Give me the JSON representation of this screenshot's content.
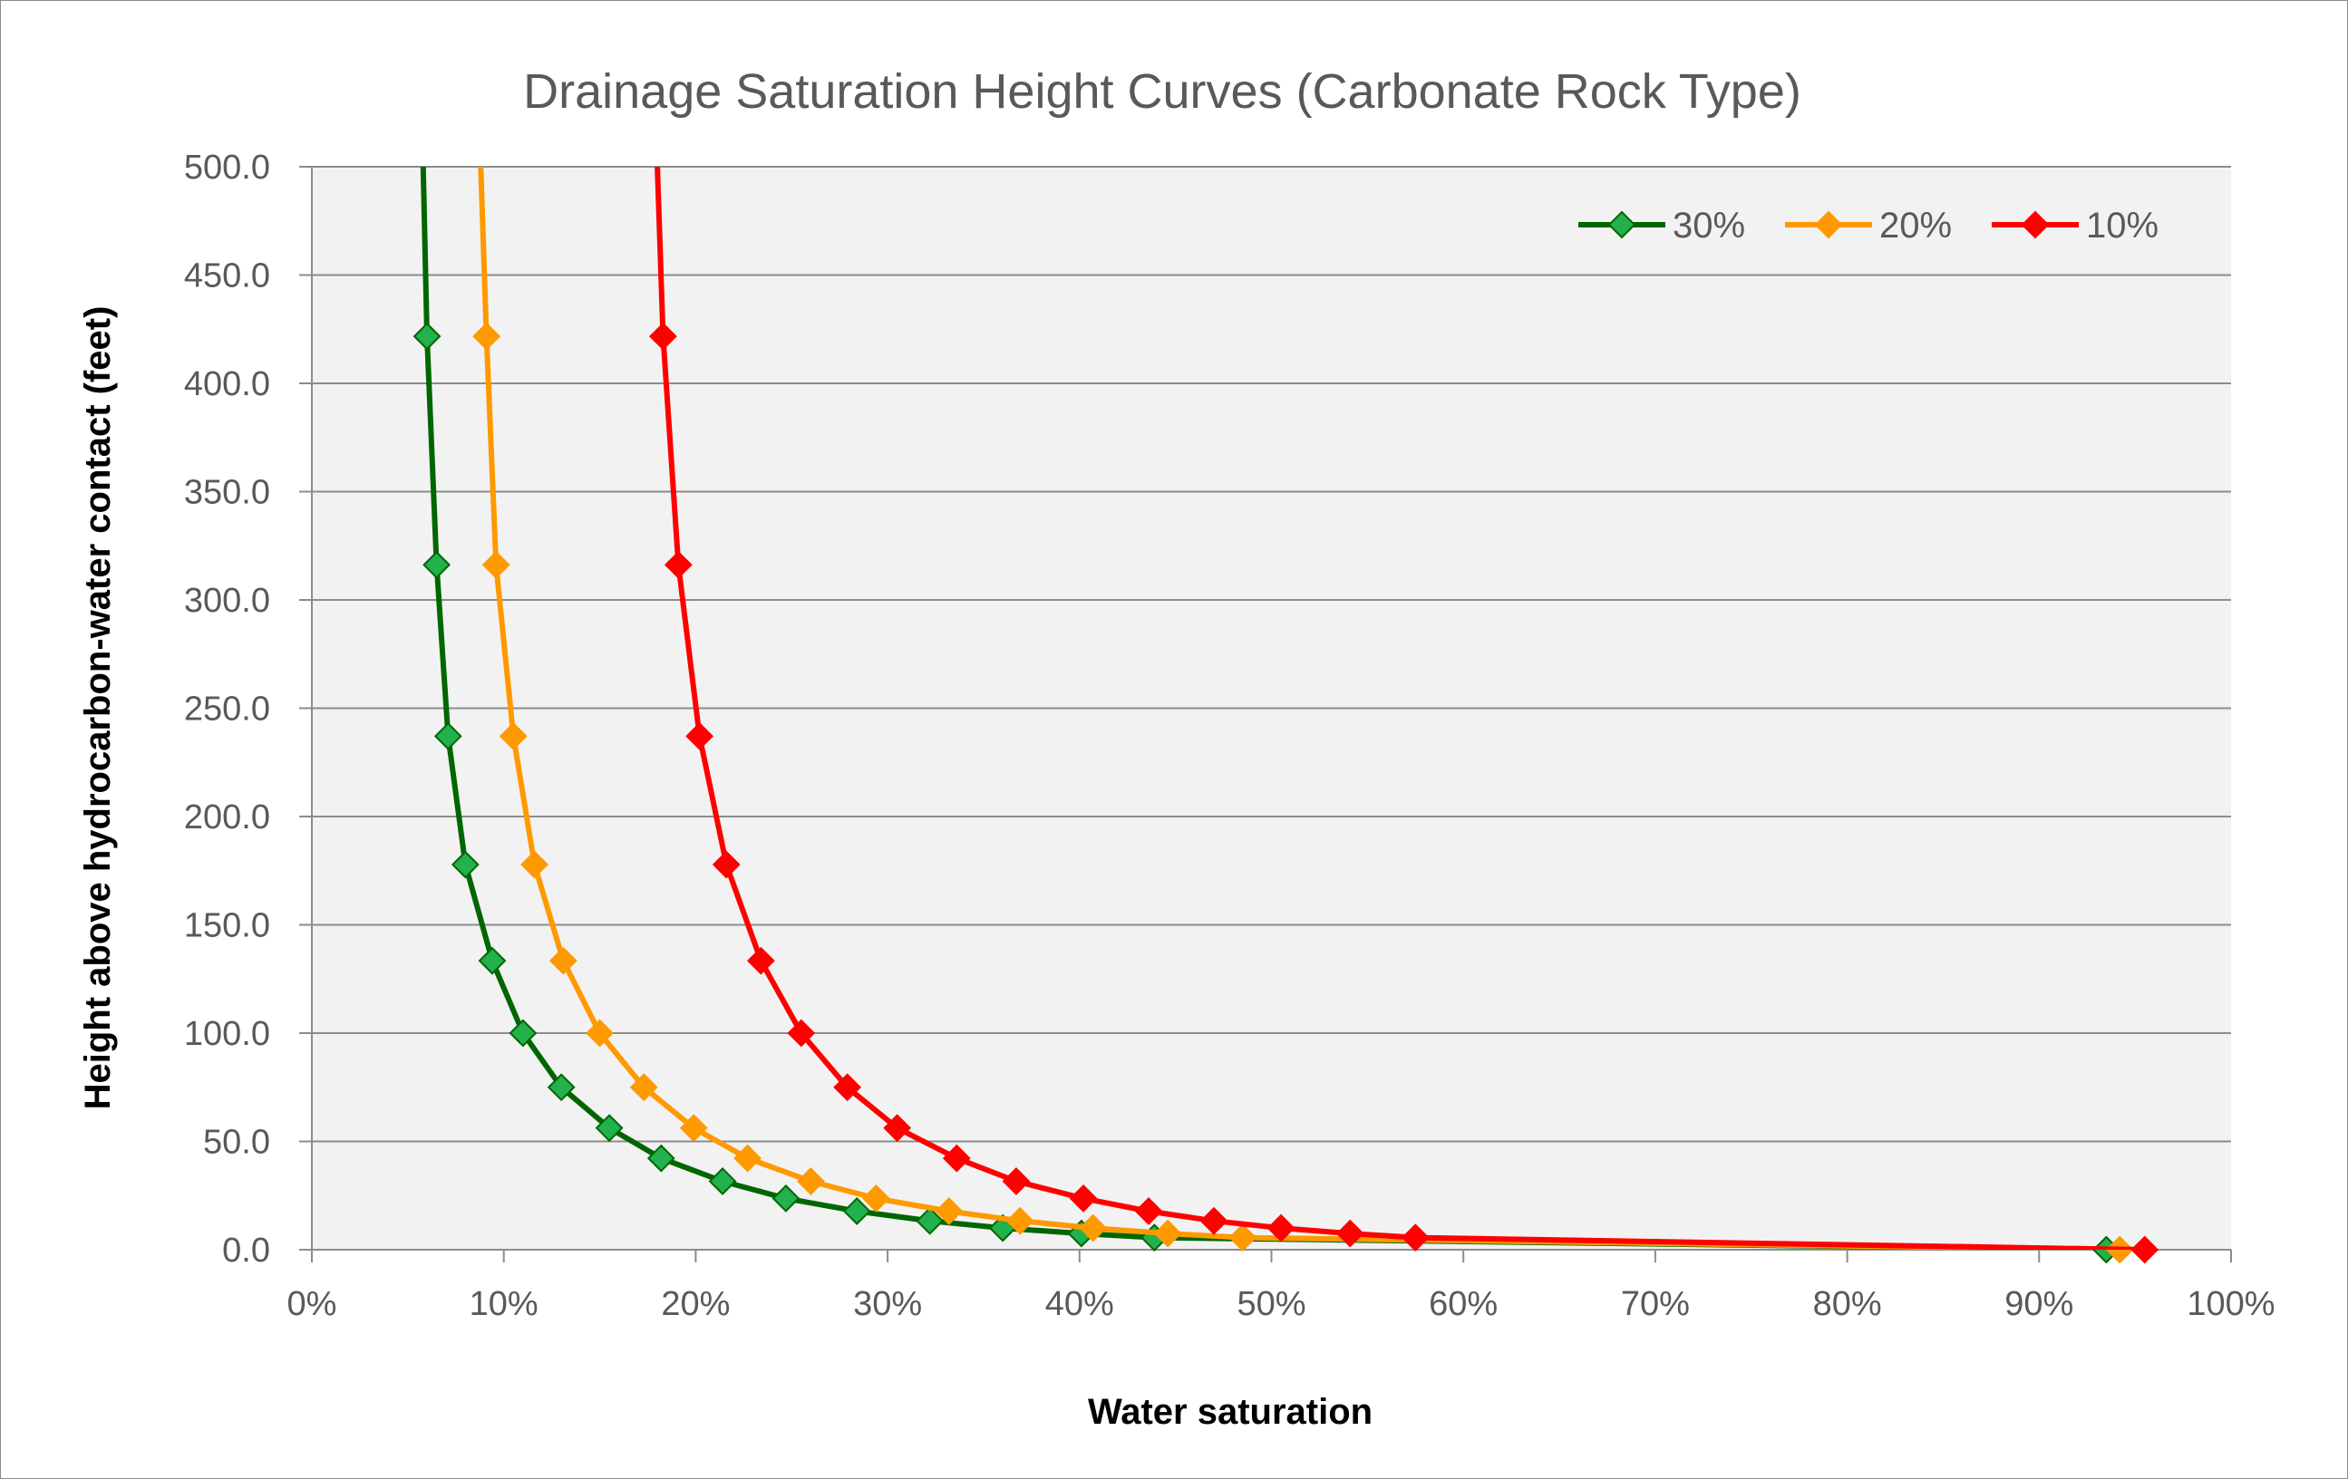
{
  "chart_data": {
    "type": "scatter",
    "title": "Drainage Saturation Height Curves (Carbonate Rock Type)",
    "xlabel": "Water saturation",
    "ylabel": "Height above hydrocarbon-water contact (feet)",
    "xlim": [
      0,
      1
    ],
    "ylim": [
      0,
      500
    ],
    "x_ticks": [
      0,
      0.1,
      0.2,
      0.3,
      0.4,
      0.5,
      0.6,
      0.7,
      0.8,
      0.9,
      1.0
    ],
    "x_tick_labels": [
      "0%",
      "10%",
      "20%",
      "30%",
      "40%",
      "50%",
      "60%",
      "70%",
      "80%",
      "90%",
      "100%"
    ],
    "y_ticks": [
      0,
      50,
      100,
      150,
      200,
      250,
      300,
      350,
      400,
      450,
      500
    ],
    "y_tick_labels": [
      "0.0",
      "50.0",
      "100.0",
      "150.0",
      "200.0",
      "250.0",
      "300.0",
      "350.0",
      "400.0",
      "450.0",
      "500.0"
    ],
    "grid": "horizontal",
    "legend_position": "top-right",
    "plot_background": "#f2f2f2",
    "series": [
      {
        "name": "30%",
        "line_color": "#006600",
        "marker_fill": "#22b14c",
        "marker": "diamond",
        "x": [
          0.058,
          0.06,
          0.065,
          0.071,
          0.08,
          0.094,
          0.11,
          0.13,
          0.155,
          0.182,
          0.214,
          0.247,
          0.284,
          0.322,
          0.36,
          0.401,
          0.439,
          0.935
        ],
        "y": [
          500,
          421.7,
          316.2,
          237.1,
          177.8,
          133.4,
          100,
          75,
          56.2,
          42.2,
          31.6,
          23.7,
          17.8,
          13.3,
          10,
          7.5,
          5.6,
          0
        ]
      },
      {
        "name": "20%",
        "line_color": "#ff9900",
        "marker_fill": "#ff9900",
        "marker": "diamond",
        "x": [
          0.088,
          0.091,
          0.096,
          0.105,
          0.116,
          0.131,
          0.15,
          0.173,
          0.199,
          0.227,
          0.26,
          0.294,
          0.332,
          0.369,
          0.407,
          0.446,
          0.485,
          0.942
        ],
        "y": [
          500,
          421.7,
          316.2,
          237.1,
          177.8,
          133.4,
          100,
          75,
          56.2,
          42.2,
          31.6,
          23.7,
          17.8,
          13.3,
          10,
          7.5,
          5.6,
          0
        ]
      },
      {
        "name": "10%",
        "line_color": "#ff0000",
        "marker_fill": "#ff0000",
        "marker": "diamond",
        "x": [
          0.18,
          0.183,
          0.191,
          0.202,
          0.216,
          0.234,
          0.255,
          0.279,
          0.305,
          0.336,
          0.367,
          0.402,
          0.436,
          0.47,
          0.505,
          0.541,
          0.575,
          0.955
        ],
        "y": [
          500,
          421.7,
          316.2,
          237.1,
          177.8,
          133.4,
          100,
          75,
          56.2,
          42.2,
          31.6,
          23.7,
          17.8,
          13.3,
          10,
          7.5,
          5.6,
          0
        ]
      }
    ]
  }
}
